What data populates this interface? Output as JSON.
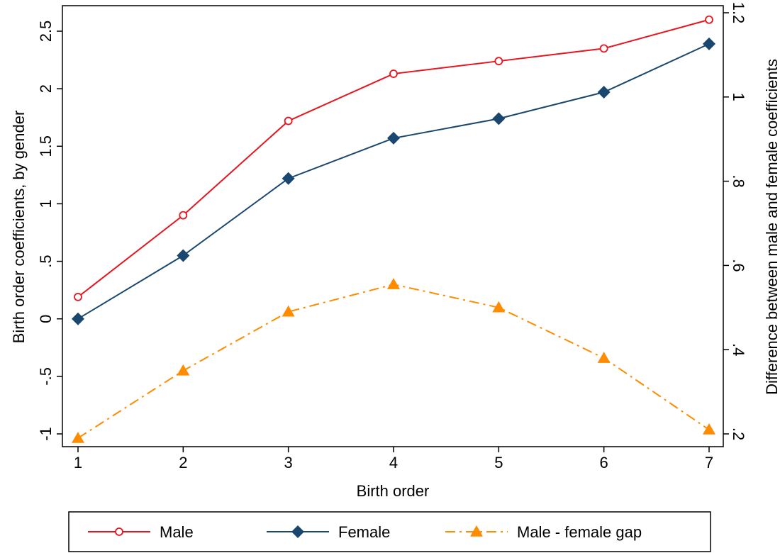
{
  "chart_data": {
    "type": "line",
    "x": [
      1,
      2,
      3,
      4,
      5,
      6,
      7
    ],
    "xlabel": "Birth order",
    "ylabel": "Birth order coefficients, by gender",
    "y2label": "Difference between male and female coefficients",
    "xlim": [
      1,
      7
    ],
    "ylim": [
      -1,
      2.5
    ],
    "y2lim": [
      0.2,
      1.2
    ],
    "x_ticks": [
      "1",
      "2",
      "3",
      "4",
      "5",
      "6",
      "7"
    ],
    "y_ticks": [
      "-1",
      "-.5",
      "0",
      ".5",
      "1",
      "1.5",
      "2",
      "2.5"
    ],
    "y_tick_values": [
      -1,
      -0.5,
      0,
      0.5,
      1,
      1.5,
      2,
      2.5
    ],
    "y2_ticks": [
      ".2",
      ".4",
      ".6",
      ".8",
      "1",
      "1.2"
    ],
    "y2_tick_values": [
      0.2,
      0.4,
      0.6,
      0.8,
      1.0,
      1.2
    ],
    "grid": false,
    "legend_position": "bottom",
    "series": [
      {
        "name": "Male",
        "axis": "left",
        "color": "#e8141e",
        "marker": "hollow-circle",
        "dash": "solid",
        "values": [
          0.19,
          0.9,
          1.72,
          2.13,
          2.24,
          2.35,
          2.6
        ]
      },
      {
        "name": "Female",
        "axis": "left",
        "color": "#1a476f",
        "marker": "diamond",
        "dash": "solid",
        "values": [
          0.0,
          0.55,
          1.22,
          1.57,
          1.74,
          1.97,
          2.39
        ]
      },
      {
        "name": "Male - female gap",
        "axis": "right",
        "color": "#ff8c00",
        "marker": "triangle",
        "dash": "dashdot",
        "values": [
          0.19,
          0.35,
          0.49,
          0.555,
          0.5,
          0.38,
          0.21
        ]
      }
    ]
  }
}
